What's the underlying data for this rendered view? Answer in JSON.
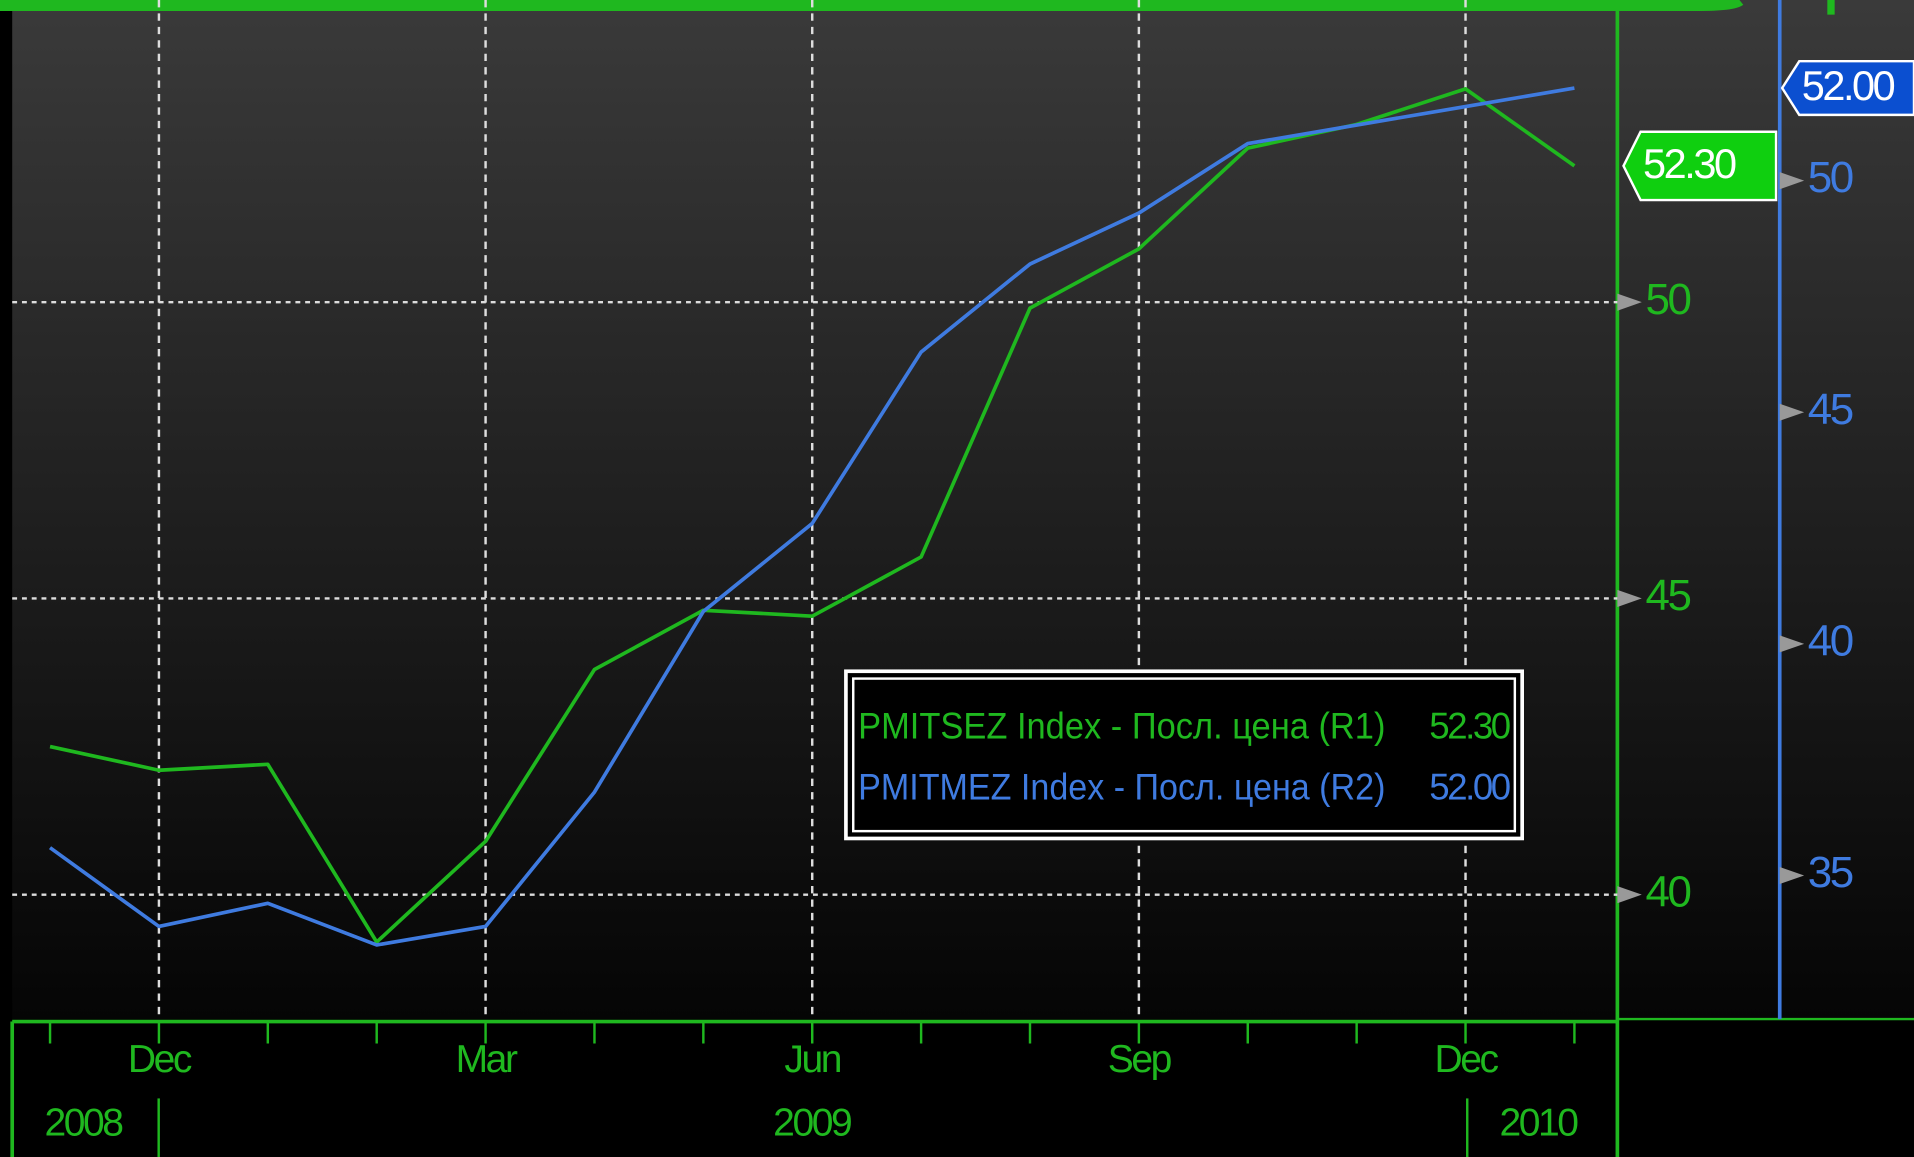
{
  "chart_data": {
    "type": "line",
    "categories": [
      null,
      "Dec",
      null,
      null,
      "Mar",
      null,
      null,
      "Jun",
      null,
      null,
      "Sep",
      null,
      null,
      "Dec",
      null
    ],
    "year_labels": [
      "2008",
      "2009",
      "2010"
    ],
    "series": [
      {
        "name": "PMITSEZ  Index - Посл. цена (R1)",
        "color": "#1fb81f",
        "axis": "y",
        "values": [
          42.5,
          42.1,
          42.2,
          39.2,
          40.9,
          43.8,
          44.8,
          44.7,
          45.7,
          49.9,
          50.9,
          52.6,
          53.0,
          53.6,
          52.3
        ],
        "last_label": "52.30"
      },
      {
        "name": "PMITMEZ  Index - Посл. цена (R2)",
        "color": "#3f7be0",
        "axis": "y2",
        "values": [
          35.6,
          33.9,
          34.4,
          33.5,
          33.9,
          36.8,
          40.7,
          42.6,
          46.3,
          48.2,
          49.3,
          50.8,
          51.2,
          51.6,
          52.0
        ],
        "last_label": "52.00"
      }
    ],
    "ylim": [
      37.9,
      55.1
    ],
    "yticks": [
      40,
      45,
      50
    ],
    "y2lim": [
      31.9,
      53.9
    ],
    "y2ticks": [
      35,
      40,
      45,
      50
    ],
    "grid": true
  }
}
